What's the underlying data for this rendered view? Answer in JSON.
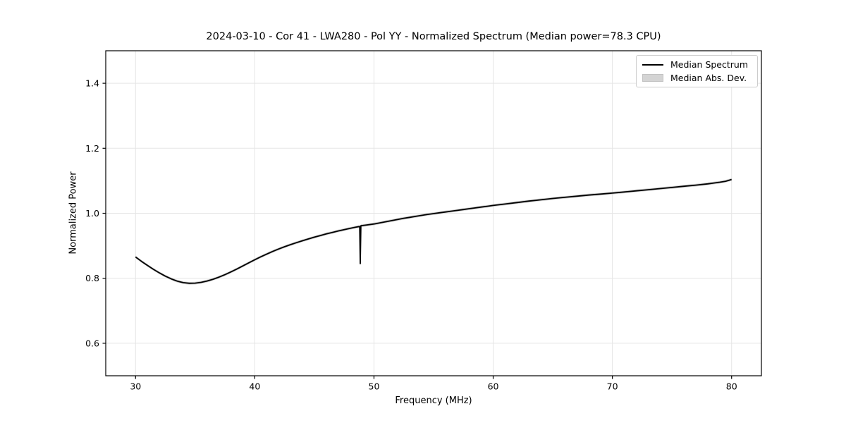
{
  "page": {
    "background": "#ffffff"
  },
  "chart_data": {
    "type": "line",
    "title": "2024-03-10 - Cor 41 - LWA280 - Pol YY - Normalized Spectrum (Median power=78.3 CPU)",
    "xlabel": "Frequency (MHz)",
    "ylabel": "Normalized Power",
    "xlim": [
      27.5,
      82.5
    ],
    "ylim": [
      0.5,
      1.5
    ],
    "xticks": [
      30,
      40,
      50,
      60,
      70,
      80
    ],
    "yticks": [
      0.6,
      0.8,
      1.0,
      1.2,
      1.4
    ],
    "grid": true,
    "grid_color": "#e5e5e5",
    "spine_color": "#000000",
    "line_color": "#000000",
    "band_color": "#cccccc",
    "mad_band_half_width": 0.004,
    "legend": {
      "position": "upper right",
      "entries": [
        {
          "label": "Median Spectrum",
          "type": "line",
          "color": "#000000"
        },
        {
          "label": "Median Abs. Dev.",
          "type": "patch",
          "color": "#cccccc"
        }
      ]
    },
    "series": [
      {
        "name": "Median Spectrum",
        "x": [
          30,
          30.5,
          31,
          31.5,
          32,
          32.5,
          33,
          33.5,
          34,
          34.5,
          35,
          35.5,
          36,
          36.5,
          37,
          37.5,
          38,
          38.5,
          39,
          39.5,
          40,
          40.5,
          41,
          41.5,
          42,
          42.5,
          43,
          43.5,
          44,
          44.5,
          45,
          45.5,
          46,
          46.5,
          47,
          47.5,
          48,
          48.5,
          48.8,
          48.85,
          48.9,
          49,
          49.5,
          50,
          50.5,
          51,
          51.5,
          52,
          52.5,
          53,
          53.5,
          54,
          54.5,
          55,
          55.5,
          56,
          56.5,
          57,
          57.5,
          58,
          58.5,
          59,
          59.5,
          60,
          61,
          62,
          63,
          64,
          65,
          66,
          67,
          68,
          69,
          70,
          71,
          72,
          73,
          74,
          75,
          76,
          77,
          78,
          79,
          79.5,
          80
        ],
        "y": [
          0.8655,
          0.852,
          0.8395,
          0.8275,
          0.8165,
          0.8065,
          0.798,
          0.791,
          0.7865,
          0.7845,
          0.785,
          0.7875,
          0.7915,
          0.797,
          0.8035,
          0.811,
          0.8195,
          0.8285,
          0.838,
          0.8475,
          0.857,
          0.866,
          0.8745,
          0.8825,
          0.89,
          0.897,
          0.9035,
          0.9095,
          0.9155,
          0.921,
          0.9265,
          0.9315,
          0.9365,
          0.941,
          0.9455,
          0.9495,
          0.9535,
          0.9575,
          0.9595,
          0.845,
          0.9615,
          0.962,
          0.9645,
          0.967,
          0.9705,
          0.974,
          0.9775,
          0.981,
          0.9845,
          0.9875,
          0.9905,
          0.9935,
          0.9965,
          0.999,
          1.0015,
          1.004,
          1.0065,
          1.009,
          1.0115,
          1.014,
          1.0165,
          1.019,
          1.0215,
          1.024,
          1.0285,
          1.033,
          1.0375,
          1.0415,
          1.0455,
          1.049,
          1.0525,
          1.056,
          1.059,
          1.062,
          1.0655,
          1.069,
          1.0725,
          1.076,
          1.0795,
          1.083,
          1.0865,
          1.0905,
          1.0955,
          1.0985,
          1.104
        ]
      }
    ]
  }
}
